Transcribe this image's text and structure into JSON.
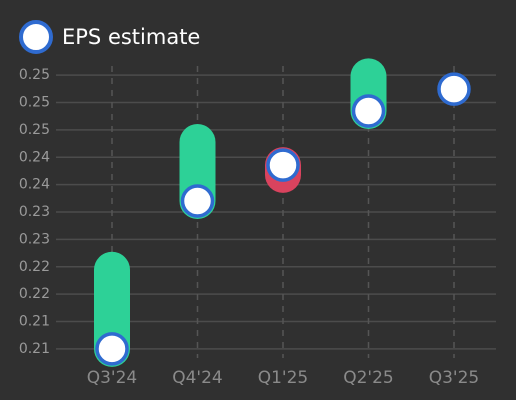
{
  "chart_data": {
    "type": "eps",
    "categories": [
      "Q3'24",
      "Q4'24",
      "Q1'25",
      "Q2'25",
      "Q3'25"
    ],
    "series": [
      {
        "name": "EPS estimate",
        "color": "#ffffff",
        "border_color": "#2f6bd0",
        "values": [
          0.209,
          0.2333,
          0.2392,
          0.2481,
          0.2517
        ]
      }
    ],
    "actual": [
      0.222,
      0.243,
      0.2376,
      0.2538,
      null
    ],
    "beat_color": "#2dd197",
    "miss_color": "#d9435e",
    "ylim": [
      0.2075,
      0.2555
    ],
    "yticks": [
      {
        "value": 0.209,
        "label": "0.21"
      },
      {
        "value": 0.2135,
        "label": "0.21"
      },
      {
        "value": 0.218,
        "label": "0.22"
      },
      {
        "value": 0.2225,
        "label": "0.22"
      },
      {
        "value": 0.227,
        "label": "0.23"
      },
      {
        "value": 0.2315,
        "label": "0.23"
      },
      {
        "value": 0.236,
        "label": "0.24"
      },
      {
        "value": 0.2405,
        "label": "0.24"
      },
      {
        "value": 0.245,
        "label": "0.25"
      },
      {
        "value": 0.2495,
        "label": "0.25"
      },
      {
        "value": 0.254,
        "label": "0.25"
      }
    ],
    "grid": true,
    "legend": "top-left"
  }
}
